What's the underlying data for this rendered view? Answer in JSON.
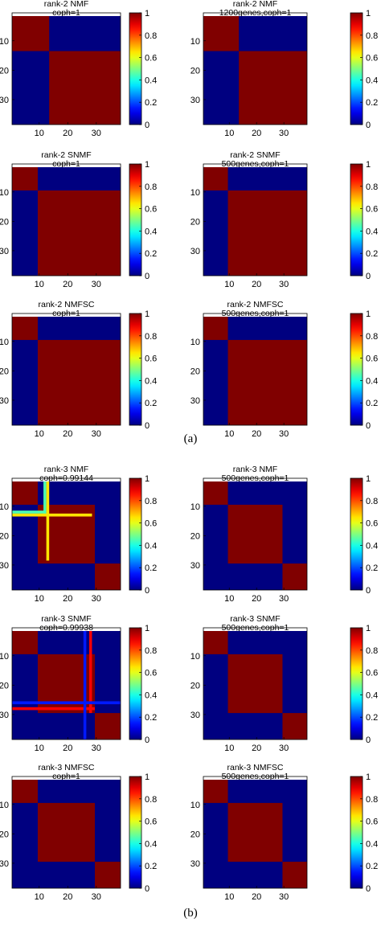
{
  "captions": {
    "a": "(a)",
    "b": "(b)"
  },
  "colormap": "jet",
  "chart_data": [
    {
      "type": "heatmap",
      "title": "rank-2 NMF",
      "subtitle": "coph=1",
      "n": 38,
      "blocks": [
        [
          1,
          13
        ],
        [
          14,
          38
        ]
      ],
      "lines": [],
      "xticks": [
        "10",
        "20",
        "30"
      ],
      "yticks": [
        "10",
        "20",
        "30"
      ],
      "colorbar": {
        "ticks": [
          "0",
          "0.2",
          "0.4",
          "0.6",
          "0.8",
          "1"
        ]
      }
    },
    {
      "type": "heatmap",
      "title": "rank-2 NMF",
      "subtitle": "1200genes,coph=1",
      "n": 38,
      "blocks": [
        [
          1,
          13
        ],
        [
          14,
          38
        ]
      ],
      "lines": [],
      "xticks": [
        "10",
        "20",
        "30"
      ],
      "yticks": [
        "10",
        "20",
        "30"
      ],
      "colorbar": {
        "ticks": [
          "0",
          "0.2",
          "0.4",
          "0.6",
          "0.8",
          "1"
        ]
      }
    },
    {
      "type": "heatmap",
      "title": "rank-2 SNMF",
      "subtitle": "coph=1",
      "n": 38,
      "blocks": [
        [
          1,
          9
        ],
        [
          10,
          38
        ]
      ],
      "lines": [],
      "xticks": [
        "10",
        "20",
        "30"
      ],
      "yticks": [
        "10",
        "20",
        "30"
      ],
      "colorbar": {
        "ticks": [
          "0",
          "0.2",
          "0.4",
          "0.6",
          "0.8",
          "1"
        ]
      }
    },
    {
      "type": "heatmap",
      "title": "rank-2 SNMF",
      "subtitle": "500genes,coph=1",
      "n": 38,
      "blocks": [
        [
          1,
          9
        ],
        [
          10,
          38
        ]
      ],
      "lines": [],
      "xticks": [
        "10",
        "20",
        "30"
      ],
      "yticks": [
        "10",
        "20",
        "30"
      ],
      "colorbar": {
        "ticks": [
          "0",
          "0.2",
          "0.4",
          "0.6",
          "0.8",
          "1"
        ]
      }
    },
    {
      "type": "heatmap",
      "title": "rank-2 NMFSC",
      "subtitle": "coph=1",
      "n": 38,
      "blocks": [
        [
          1,
          9
        ],
        [
          10,
          38
        ]
      ],
      "lines": [],
      "xticks": [
        "10",
        "20",
        "30"
      ],
      "yticks": [
        "10",
        "20",
        "30"
      ],
      "colorbar": {
        "ticks": [
          "0",
          "0.2",
          "0.4",
          "0.6",
          "0.8",
          "1"
        ]
      }
    },
    {
      "type": "heatmap",
      "title": "rank-2 NMFSC",
      "subtitle": "500genes,coph=1",
      "n": 38,
      "blocks": [
        [
          1,
          9
        ],
        [
          10,
          38
        ]
      ],
      "lines": [],
      "xticks": [
        "10",
        "20",
        "30"
      ],
      "yticks": [
        "10",
        "20",
        "30"
      ],
      "colorbar": {
        "ticks": [
          "0",
          "0.2",
          "0.4",
          "0.6",
          "0.8",
          "1"
        ]
      }
    },
    {
      "type": "heatmap",
      "title": "rank-3 NMF",
      "subtitle": "coph=0.99144",
      "n": 38,
      "blocks": [
        [
          1,
          9
        ],
        [
          10,
          29
        ],
        [
          30,
          38
        ]
      ],
      "lines": [
        {
          "index": 12,
          "value": 0.45,
          "rowEnd": 12,
          "colEnd": 12
        },
        {
          "index": 13,
          "value": 0.65,
          "rowEnd": 28,
          "colEnd": 28
        }
      ],
      "xticks": [
        "10",
        "20",
        "30"
      ],
      "yticks": [
        "10",
        "20",
        "30"
      ],
      "colorbar": {
        "ticks": [
          "0",
          "0.2",
          "0.4",
          "0.6",
          "0.8",
          "1"
        ]
      }
    },
    {
      "type": "heatmap",
      "title": "rank-3 NMF",
      "subtitle": "500genes,coph=1",
      "n": 38,
      "blocks": [
        [
          1,
          9
        ],
        [
          10,
          29
        ],
        [
          30,
          38
        ]
      ],
      "lines": [],
      "xticks": [
        "10",
        "20",
        "30"
      ],
      "yticks": [
        "10",
        "20",
        "30"
      ],
      "colorbar": {
        "ticks": [
          "0",
          "0.2",
          "0.4",
          "0.6",
          "0.8",
          "1"
        ]
      }
    },
    {
      "type": "heatmap",
      "title": "rank-3 SNMF",
      "subtitle": "coph=0.99938",
      "n": 38,
      "blocks": [
        [
          1,
          9
        ],
        [
          10,
          29
        ],
        [
          30,
          38
        ]
      ],
      "lines": [
        {
          "index": 28,
          "value": 0.88,
          "rowEnd": 29,
          "colEnd": 29
        },
        {
          "index": 26,
          "value": 0.15,
          "rowEnd": 38,
          "colEnd": 38
        }
      ],
      "xticks": [
        "10",
        "20",
        "30"
      ],
      "yticks": [
        "10",
        "20",
        "30"
      ],
      "colorbar": {
        "ticks": [
          "0",
          "0.2",
          "0.4",
          "0.6",
          "0.8",
          "1"
        ]
      }
    },
    {
      "type": "heatmap",
      "title": "rank-3 SNMF",
      "subtitle": "500genes,coph=1",
      "n": 38,
      "blocks": [
        [
          1,
          9
        ],
        [
          10,
          29
        ],
        [
          30,
          38
        ]
      ],
      "lines": [],
      "xticks": [
        "10",
        "20",
        "30"
      ],
      "yticks": [
        "10",
        "20",
        "30"
      ],
      "colorbar": {
        "ticks": [
          "0",
          "0.2",
          "0.4",
          "0.6",
          "0.8",
          "1"
        ]
      }
    },
    {
      "type": "heatmap",
      "title": "rank-3 NMFSC",
      "subtitle": "coph=1",
      "n": 38,
      "blocks": [
        [
          1,
          9
        ],
        [
          10,
          29
        ],
        [
          30,
          38
        ]
      ],
      "lines": [],
      "xticks": [
        "10",
        "20",
        "30"
      ],
      "yticks": [
        "10",
        "20",
        "30"
      ],
      "colorbar": {
        "ticks": [
          "0",
          "0.2",
          "0.4",
          "0.6",
          "0.8",
          "1"
        ]
      }
    },
    {
      "type": "heatmap",
      "title": "rank-3 NMFSC",
      "subtitle": "500genes,coph=1",
      "n": 38,
      "blocks": [
        [
          1,
          9
        ],
        [
          10,
          29
        ],
        [
          30,
          38
        ]
      ],
      "lines": [],
      "xticks": [
        "10",
        "20",
        "30"
      ],
      "yticks": [
        "10",
        "20",
        "30"
      ],
      "colorbar": {
        "ticks": [
          "0",
          "0.2",
          "0.4",
          "0.6",
          "0.8",
          "1"
        ]
      }
    }
  ]
}
